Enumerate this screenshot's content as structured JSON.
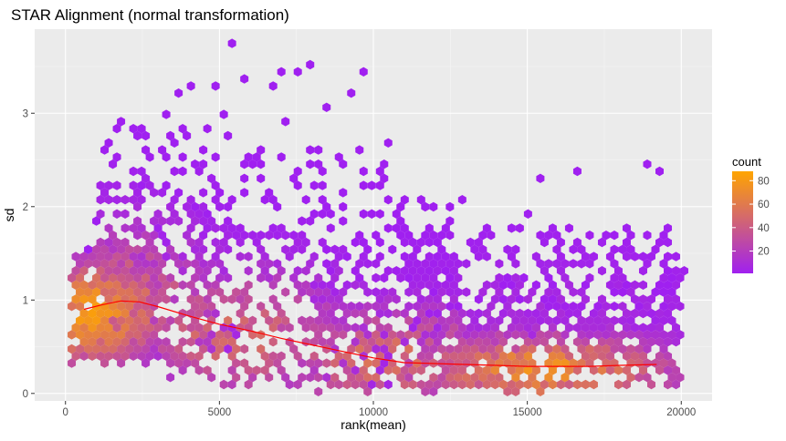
{
  "chart_data": {
    "type": "hexbin",
    "title": "STAR Alignment (normal transformation)",
    "xlabel": "rank(mean)",
    "ylabel": "sd",
    "xlim": [
      -1000,
      21000
    ],
    "ylim": [
      -0.08,
      3.9
    ],
    "x_ticks": [
      0,
      5000,
      10000,
      15000,
      20000
    ],
    "y_ticks": [
      0,
      1,
      2,
      3
    ],
    "x_tick_labels": [
      "0",
      "5000",
      "10000",
      "15000",
      "20000"
    ],
    "y_tick_labels": [
      "0",
      "1",
      "2",
      "3"
    ],
    "grid": true,
    "panel_background": "#ebebeb",
    "legend": {
      "title": "count",
      "placement": "right",
      "breaks": [
        20,
        40,
        60,
        80
      ],
      "break_labels": [
        "20",
        "40",
        "60",
        "80"
      ],
      "range": [
        1,
        88
      ],
      "color_low": "#a020f0",
      "color_high": "#ffa500"
    },
    "trend_line": {
      "color": "#ff0000",
      "x": [
        600,
        1200,
        1800,
        2400,
        3000,
        4000,
        5000,
        6000,
        7000,
        8000,
        9000,
        10000,
        11000,
        12000,
        13000,
        14000,
        15000,
        16000,
        17000,
        18000,
        19200
      ],
      "y": [
        0.9,
        0.95,
        0.99,
        0.98,
        0.93,
        0.83,
        0.74,
        0.67,
        0.59,
        0.52,
        0.45,
        0.38,
        0.33,
        0.32,
        0.31,
        0.3,
        0.29,
        0.29,
        0.29,
        0.3,
        0.31
      ]
    },
    "sparse_points": [
      {
        "x": 5500,
        "y": 3.73
      },
      {
        "x": 4800,
        "y": 3.3
      },
      {
        "x": 5800,
        "y": 3.38
      },
      {
        "x": 6900,
        "y": 3.48
      },
      {
        "x": 7500,
        "y": 3.48
      },
      {
        "x": 8000,
        "y": 3.55
      },
      {
        "x": 9600,
        "y": 3.42
      },
      {
        "x": 9400,
        "y": 3.22
      },
      {
        "x": 8500,
        "y": 3.03
      },
      {
        "x": 6800,
        "y": 3.3
      },
      {
        "x": 7200,
        "y": 2.9
      },
      {
        "x": 7900,
        "y": 2.6
      },
      {
        "x": 8200,
        "y": 2.6
      },
      {
        "x": 10600,
        "y": 2.68
      },
      {
        "x": 4200,
        "y": 3.3
      },
      {
        "x": 3800,
        "y": 3.2
      },
      {
        "x": 5200,
        "y": 3.0
      },
      {
        "x": 9800,
        "y": 2.4
      },
      {
        "x": 15500,
        "y": 2.28
      },
      {
        "x": 16700,
        "y": 2.35
      },
      {
        "x": 18900,
        "y": 2.47
      },
      {
        "x": 19400,
        "y": 2.4
      },
      {
        "x": 11600,
        "y": 2.07
      },
      {
        "x": 12800,
        "y": 2.1
      },
      {
        "x": 15000,
        "y": 1.95
      },
      {
        "x": 14400,
        "y": 1.8
      },
      {
        "x": 16300,
        "y": 1.74
      },
      {
        "x": 17800,
        "y": 1.72
      },
      {
        "x": 19600,
        "y": 1.8
      },
      {
        "x": 13700,
        "y": 1.78
      },
      {
        "x": 1600,
        "y": 1.94
      },
      {
        "x": 1000,
        "y": 1.85
      },
      {
        "x": 700,
        "y": 1.55
      },
      {
        "x": 2500,
        "y": 2.25
      },
      {
        "x": 1600,
        "y": 2.55
      },
      {
        "x": 2300,
        "y": 2.8
      },
      {
        "x": 3200,
        "y": 3.0
      },
      {
        "x": 3600,
        "y": 2.7
      }
    ],
    "clusters": [
      {
        "x": [
          300,
          3000
        ],
        "y": [
          0.35,
          1.55
        ],
        "n": 420,
        "peak": [
          800,
          0.85
        ],
        "spread": [
          1500,
          0.4
        ],
        "max": 85
      },
      {
        "x": [
          1000,
          5500
        ],
        "y": [
          0.45,
          2.9
        ],
        "n": 340,
        "peak": [
          2000,
          0.9
        ],
        "spread": [
          1800,
          0.55
        ],
        "max": 60
      },
      {
        "x": [
          3000,
          10500
        ],
        "y": [
          0.1,
          2.6
        ],
        "n": 560,
        "peak": [
          5500,
          0.62
        ],
        "spread": [
          2500,
          0.45
        ],
        "max": 55
      },
      {
        "x": [
          8000,
          13000
        ],
        "y": [
          0.05,
          2.1
        ],
        "n": 380,
        "peak": [
          10500,
          0.38
        ],
        "spread": [
          2500,
          0.35
        ],
        "max": 60
      },
      {
        "x": [
          11000,
          20000
        ],
        "y": [
          0.05,
          1.3
        ],
        "n": 720,
        "peak": [
          15500,
          0.25
        ],
        "spread": [
          3000,
          0.25
        ],
        "max": 80
      },
      {
        "x": [
          11000,
          20000
        ],
        "y": [
          0.6,
          1.75
        ],
        "n": 220,
        "peak": [
          15000,
          0.7
        ],
        "spread": [
          4000,
          0.45
        ],
        "max": 10
      }
    ]
  }
}
